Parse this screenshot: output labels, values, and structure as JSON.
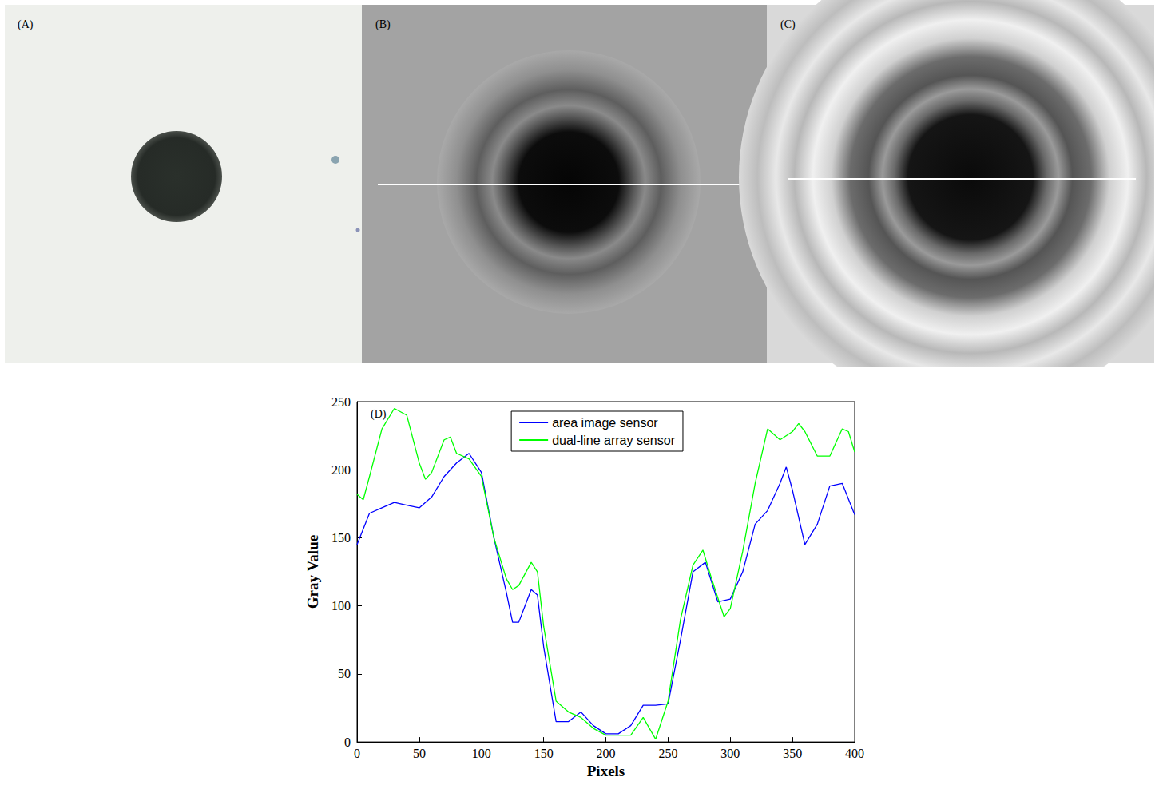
{
  "panels": [
    "(A)",
    "(B)",
    "(C)"
  ],
  "chart_data": {
    "type": "line",
    "annotation": "(D)",
    "x_label": "Pixels",
    "y_label": "Gray Value",
    "xlim": [
      0,
      400
    ],
    "xticks": [
      0,
      50,
      100,
      150,
      200,
      250,
      300,
      350,
      400
    ],
    "ylim": [
      0,
      250
    ],
    "yticks": [
      0,
      50,
      100,
      150,
      200,
      250
    ],
    "grid": false,
    "legend": "upper center",
    "series": [
      {
        "name": "area image sensor",
        "color": "#0000ff",
        "x": [
          0,
          10,
          20,
          30,
          40,
          50,
          60,
          70,
          80,
          90,
          100,
          110,
          120,
          125,
          130,
          140,
          145,
          150,
          160,
          170,
          180,
          190,
          200,
          210,
          220,
          230,
          240,
          250,
          260,
          270,
          280,
          290,
          300,
          310,
          320,
          330,
          340,
          345,
          350,
          360,
          370,
          380,
          390,
          400
        ],
        "values": [
          145,
          168,
          172,
          176,
          174,
          172,
          180,
          195,
          205,
          212,
          198,
          150,
          110,
          88,
          88,
          112,
          108,
          70,
          15,
          15,
          22,
          12,
          6,
          6,
          12,
          27,
          27,
          28,
          75,
          125,
          132,
          103,
          105,
          125,
          160,
          170,
          190,
          202,
          185,
          145,
          160,
          188,
          190,
          167
        ]
      },
      {
        "name": "dual-line array sensor",
        "color": "#00ff00",
        "x": [
          0,
          5,
          10,
          20,
          30,
          40,
          50,
          55,
          60,
          70,
          75,
          80,
          90,
          100,
          110,
          120,
          125,
          130,
          140,
          145,
          150,
          160,
          170,
          180,
          190,
          200,
          210,
          220,
          230,
          240,
          250,
          260,
          270,
          278,
          285,
          295,
          300,
          310,
          320,
          330,
          340,
          350,
          355,
          360,
          370,
          380,
          390,
          395,
          400
        ],
        "values": [
          182,
          178,
          195,
          230,
          245,
          240,
          205,
          193,
          198,
          222,
          224,
          212,
          208,
          195,
          150,
          120,
          112,
          115,
          132,
          125,
          85,
          30,
          22,
          18,
          10,
          5,
          5,
          5,
          18,
          2,
          30,
          90,
          130,
          141,
          120,
          92,
          98,
          140,
          190,
          230,
          222,
          228,
          234,
          228,
          210,
          210,
          230,
          228,
          213
        ]
      }
    ]
  }
}
